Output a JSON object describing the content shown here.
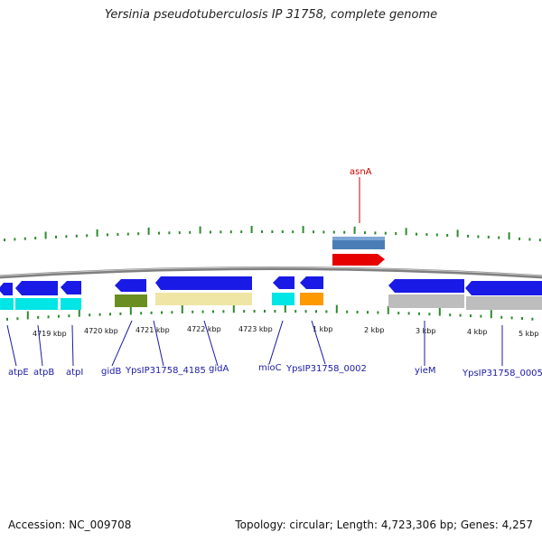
{
  "title": "Yersinia pseudotuberculosis IP 31758, complete genome",
  "accession_label": "Accession: NC_009708",
  "summary_label": "Topology: circular; Length: 4,723,306 bp; Genes: 4,257",
  "colors": {
    "forward_gene": "#1a1ae6",
    "cds_cyan": "#00e5e5",
    "olive": "#6b8e23",
    "khaki": "#efe6a6",
    "orange": "#ff9900",
    "gray_gene": "#bdbdbd",
    "steel": "#4a7db5",
    "red_gene": "#e60000",
    "backbone": "#808080",
    "tick": "#2e8b2e",
    "label_blue": "#1a1aa6",
    "label_red": "#cc0000"
  },
  "kbp_ticks": [
    "4719 kbp",
    "4720 kbp",
    "4721 kbp",
    "4722 kbp",
    "4723 kbp",
    "1 kbp",
    "2 kbp",
    "3 kbp",
    "4 kbp",
    "5 kbp"
  ],
  "gene_labels": [
    "atpE",
    "atpB",
    "atpI",
    "gidB",
    "YpsIP31758_4185",
    "gidA",
    "mioC",
    "YpsIP31758_0002",
    "yieM",
    "YpsIP31758_0005"
  ],
  "upper_gene_label": "asnA"
}
